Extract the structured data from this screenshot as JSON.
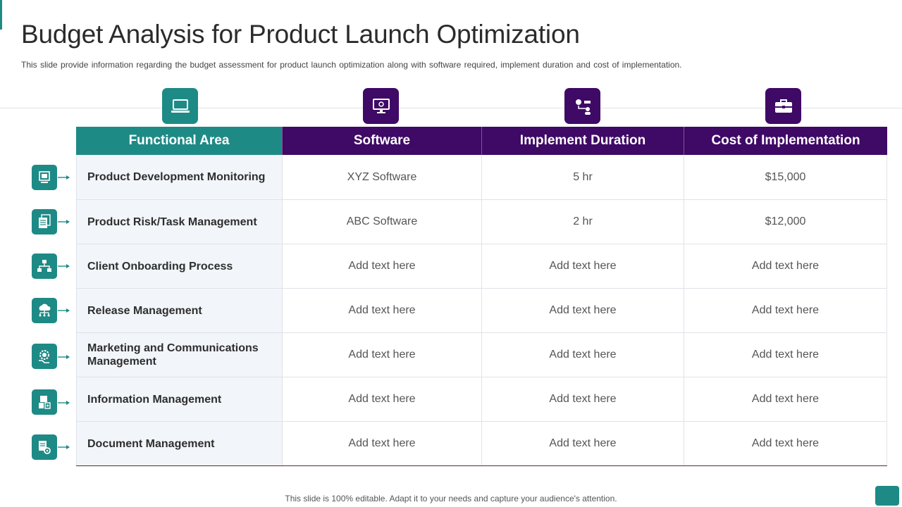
{
  "title": "Budget Analysis  for Product Launch Optimization",
  "subtitle": "This slide provide  information  regarding  the  budget  assessment for  product  launch  optimization  along  with  software  required,  implement  duration  and  cost  of  implementation.",
  "table": {
    "headers": [
      "Functional Area",
      "Software",
      "Implement Duration",
      "Cost of Implementation"
    ],
    "rows": [
      {
        "area": "Product Development Monitoring",
        "software": "XYZ  Software",
        "duration": "5 hr",
        "cost": "$15,000"
      },
      {
        "area": "Product Risk/Task Management",
        "software": "ABC Software",
        "duration": "2 hr",
        "cost": "$12,000"
      },
      {
        "area": "Client Onboarding Process",
        "software": "Add text here",
        "duration": "Add text here",
        "cost": "Add text here"
      },
      {
        "area": "Release Management",
        "software": "Add text here",
        "duration": "Add text here",
        "cost": "Add text here"
      },
      {
        "area": "Marketing and Communications Management",
        "software": "Add text here",
        "duration": "Add text here",
        "cost": "Add text here"
      },
      {
        "area": "Information Management",
        "software": "Add text here",
        "duration": "Add text here",
        "cost": "Add text here"
      },
      {
        "area": "Document Management",
        "software": "Add text here",
        "duration": "Add text here",
        "cost": "Add text here"
      }
    ]
  },
  "icons": {
    "columns": [
      "laptop-icon",
      "monitor-settings-icon",
      "process-flow-icon",
      "toolbox-icon"
    ],
    "rows": [
      "monitoring-icon",
      "documents-icon",
      "org-chart-icon",
      "cloud-network-icon",
      "megaphone-gear-icon",
      "information-icon",
      "document-gear-icon"
    ]
  },
  "colors": {
    "teal": "#1e8a86",
    "purple": "#3f0966"
  },
  "footer": "This slide is 100% editable. Adapt it to your needs and capture your audience's attention."
}
